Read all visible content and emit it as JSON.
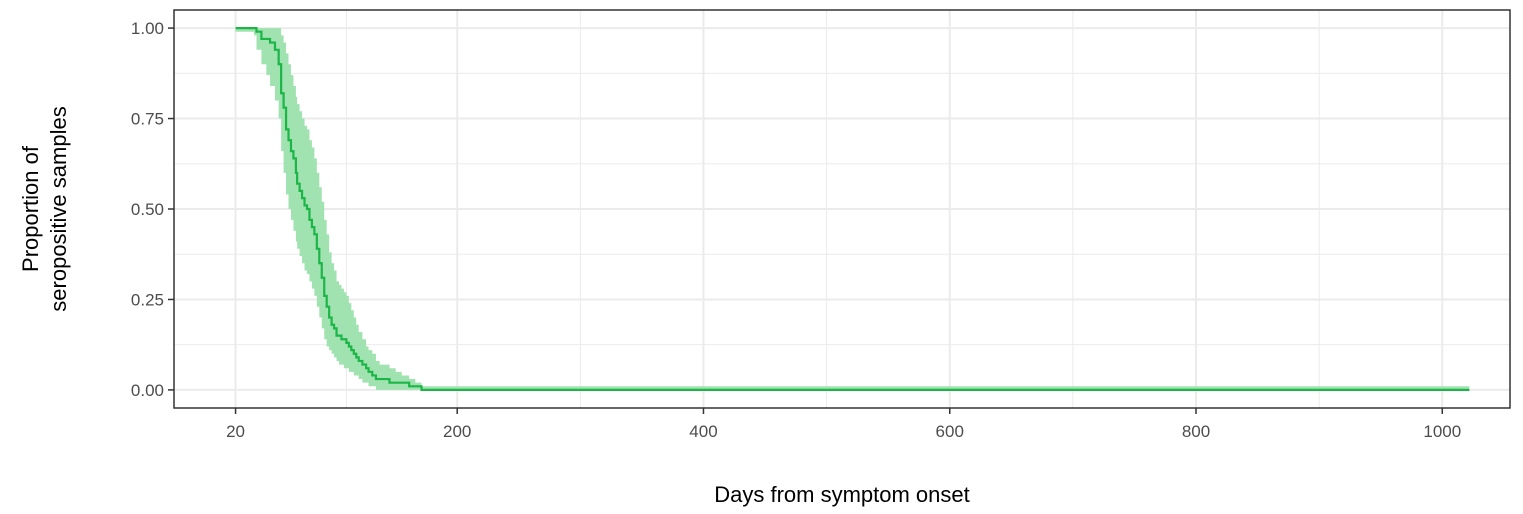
{
  "chart_data": {
    "type": "line",
    "title": "",
    "xlabel": "Days from symptom onset",
    "ylabel_lines": [
      "Proportion of",
      "seropositive samples"
    ],
    "xlim": [
      -30,
      1055
    ],
    "ylim": [
      -0.05,
      1.05
    ],
    "x_ticks": [
      20,
      200,
      400,
      600,
      800,
      1000
    ],
    "x_tick_labels": [
      "20",
      "200",
      "400",
      "600",
      "800",
      "1000"
    ],
    "y_ticks": [
      0,
      0.25,
      0.5,
      0.75,
      1.0
    ],
    "y_tick_labels": [
      "0.00",
      "0.25",
      "0.50",
      "0.75",
      "1.00"
    ],
    "grid": true,
    "legend": "none",
    "colors": {
      "line": "#1db548",
      "band": "#a0e3b0",
      "grid": "#ebebeb",
      "border": "#333333"
    },
    "series": [
      {
        "x": [
          20,
          35,
          37,
          41,
          45,
          48,
          52,
          55,
          57,
          59,
          61,
          63,
          65,
          67,
          69,
          70,
          72,
          74,
          76,
          78,
          80,
          82,
          84,
          86,
          88,
          90,
          92,
          94,
          96,
          98,
          100,
          102,
          104,
          106,
          108,
          110,
          112,
          114,
          116,
          118,
          120,
          123,
          126,
          128,
          131,
          134,
          137,
          141,
          145,
          150,
          155,
          161,
          166,
          171,
          176,
          1022
        ],
        "y": [
          1.0,
          1.0,
          0.99,
          0.97,
          0.97,
          0.96,
          0.94,
          0.9,
          0.82,
          0.78,
          0.72,
          0.69,
          0.66,
          0.64,
          0.6,
          0.57,
          0.55,
          0.53,
          0.51,
          0.5,
          0.47,
          0.45,
          0.43,
          0.39,
          0.35,
          0.31,
          0.26,
          0.23,
          0.2,
          0.18,
          0.17,
          0.15,
          0.15,
          0.14,
          0.14,
          0.13,
          0.12,
          0.11,
          0.1,
          0.09,
          0.08,
          0.07,
          0.06,
          0.05,
          0.04,
          0.03,
          0.03,
          0.03,
          0.02,
          0.02,
          0.02,
          0.01,
          0.01,
          0.0,
          0.0,
          0.0
        ],
        "upper": [
          1.0,
          1.0,
          1.0,
          1.0,
          1.0,
          1.0,
          1.0,
          1.0,
          0.98,
          0.96,
          0.93,
          0.9,
          0.87,
          0.84,
          0.81,
          0.79,
          0.77,
          0.75,
          0.73,
          0.72,
          0.69,
          0.67,
          0.64,
          0.6,
          0.56,
          0.52,
          0.47,
          0.43,
          0.38,
          0.35,
          0.33,
          0.3,
          0.29,
          0.28,
          0.27,
          0.26,
          0.24,
          0.22,
          0.2,
          0.18,
          0.16,
          0.14,
          0.12,
          0.11,
          0.1,
          0.08,
          0.07,
          0.07,
          0.06,
          0.05,
          0.04,
          0.03,
          0.02,
          0.01,
          0.01,
          0.0
        ],
        "lower": [
          0.99,
          0.98,
          0.94,
          0.9,
          0.87,
          0.84,
          0.8,
          0.75,
          0.66,
          0.6,
          0.54,
          0.5,
          0.47,
          0.44,
          0.41,
          0.39,
          0.37,
          0.35,
          0.33,
          0.32,
          0.3,
          0.28,
          0.26,
          0.23,
          0.2,
          0.17,
          0.14,
          0.12,
          0.11,
          0.1,
          0.09,
          0.08,
          0.07,
          0.07,
          0.06,
          0.06,
          0.05,
          0.05,
          0.04,
          0.04,
          0.03,
          0.02,
          0.02,
          0.01,
          0.01,
          0.0,
          0.0,
          0.0,
          0.0,
          0.0,
          0.0,
          0.0,
          0.0,
          0.0,
          0.0,
          0.0
        ]
      }
    ]
  }
}
